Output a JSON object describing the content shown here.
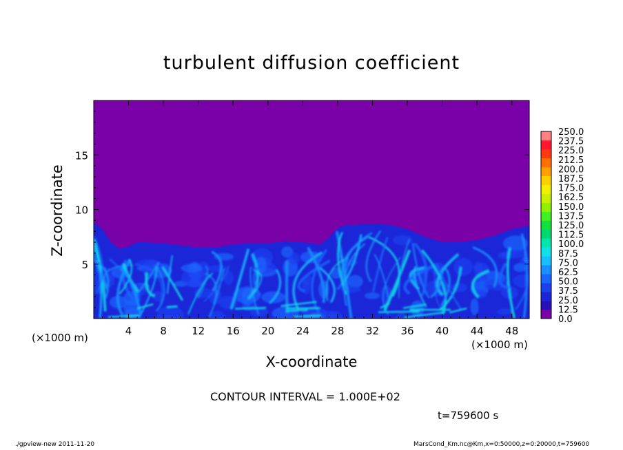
{
  "chart_data": {
    "type": "heatmap",
    "title": "turbulent diffusion coefficient",
    "xlabel": "X-coordinate",
    "ylabel": "Z-coordinate",
    "x_unit": "(×1000 m)",
    "y_unit": "(×1000 m)",
    "xlim": [
      0,
      50
    ],
    "ylim": [
      0,
      20
    ],
    "x_ticks": [
      4,
      8,
      12,
      16,
      20,
      24,
      28,
      32,
      36,
      40,
      44,
      48
    ],
    "y_ticks": [
      5,
      10,
      15
    ],
    "colorbar": {
      "levels": [
        "0.0",
        "12.5",
        "25.0",
        "37.5",
        "50.0",
        "62.5",
        "75.0",
        "87.5",
        "100.0",
        "112.5",
        "125.0",
        "137.5",
        "150.0",
        "162.5",
        "175.0",
        "187.5",
        "200.0",
        "212.5",
        "225.0",
        "237.5",
        "250.0"
      ],
      "colors": [
        "#7a00a8",
        "#2a10b8",
        "#1a26d8",
        "#1c40f0",
        "#1a66ff",
        "#1a90ff",
        "#16bfff",
        "#10e0e8",
        "#00e8b0",
        "#00d870",
        "#10e040",
        "#40f020",
        "#90f000",
        "#c8f000",
        "#f0f000",
        "#ffd000",
        "#ffa000",
        "#ff7000",
        "#ff3a10",
        "#ff1830",
        "#ff8080"
      ]
    },
    "boundary_layer_top_profile": {
      "x": [
        0,
        1,
        2,
        3,
        4,
        5,
        6,
        8,
        10,
        12,
        14,
        16,
        18,
        20,
        22,
        24,
        26,
        27,
        28,
        29,
        30,
        32,
        34,
        36,
        38,
        40,
        42,
        44,
        46,
        48,
        50
      ],
      "z": [
        8.8,
        8.2,
        7.0,
        6.4,
        6.6,
        7.0,
        7.0,
        6.9,
        6.7,
        6.5,
        6.5,
        6.8,
        6.9,
        6.9,
        7.1,
        7.0,
        6.8,
        7.4,
        8.3,
        8.6,
        8.6,
        8.7,
        8.6,
        8.2,
        7.5,
        7.0,
        7.0,
        7.2,
        7.6,
        8.2,
        8.5
      ]
    },
    "background_level": "0.0",
    "contour_interval": "CONTOUR INTERVAL = 1.000E+02"
  },
  "annotations": {
    "time": "t=759600 s",
    "footer_left": "./gpview-new   2011-11-20",
    "footer_right": "MarsCond_Km.nc@Km,x=0:50000,z=0:20000,t=759600"
  }
}
